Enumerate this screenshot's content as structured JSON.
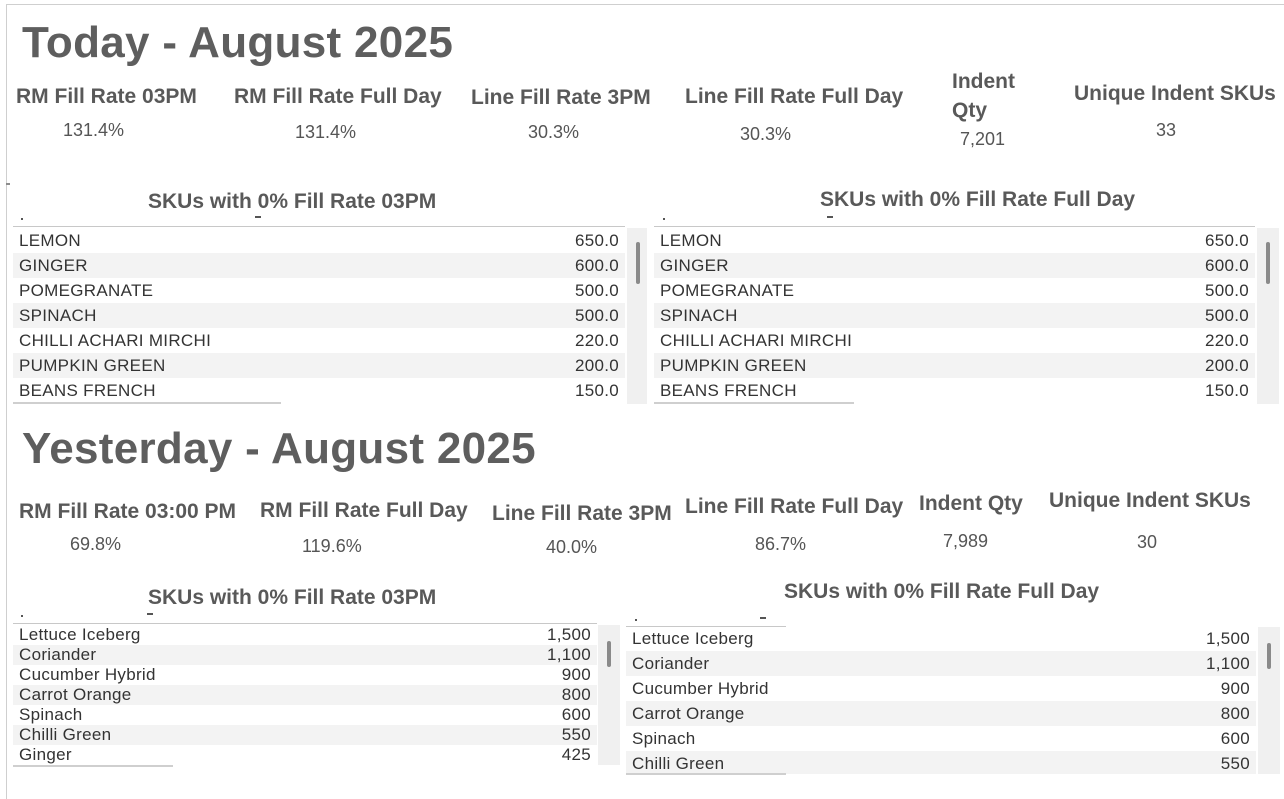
{
  "today": {
    "title": "Today - August 2025",
    "kpis": [
      {
        "label": "RM Fill Rate 03PM",
        "value": "131.4%"
      },
      {
        "label": "RM Fill Rate Full Day",
        "value": "131.4%"
      },
      {
        "label": "Line Fill Rate 3PM",
        "value": "30.3%"
      },
      {
        "label": "Line Fill Rate Full Day",
        "value": "30.3%"
      },
      {
        "label_line1": "Indent",
        "label_line2": "Qty",
        "value": "7,201"
      },
      {
        "label": "Unique Indent SKUs",
        "value": "33"
      }
    ],
    "table_3pm": {
      "title": "SKUs with 0% Fill Rate 03PM",
      "rows": [
        {
          "sku": "LEMON",
          "qty": "650.0"
        },
        {
          "sku": "GINGER",
          "qty": "600.0"
        },
        {
          "sku": "POMEGRANATE",
          "qty": "500.0"
        },
        {
          "sku": "SPINACH",
          "qty": "500.0"
        },
        {
          "sku": "CHILLI ACHARI MIRCHI",
          "qty": "220.0"
        },
        {
          "sku": "PUMPKIN GREEN",
          "qty": "200.0"
        },
        {
          "sku": "BEANS FRENCH",
          "qty": "150.0"
        }
      ]
    },
    "table_full": {
      "title": "SKUs with 0% Fill Rate Full Day",
      "rows": [
        {
          "sku": "LEMON",
          "qty": "650.0"
        },
        {
          "sku": "GINGER",
          "qty": "600.0"
        },
        {
          "sku": "POMEGRANATE",
          "qty": "500.0"
        },
        {
          "sku": "SPINACH",
          "qty": "500.0"
        },
        {
          "sku": "CHILLI ACHARI MIRCHI",
          "qty": "220.0"
        },
        {
          "sku": "PUMPKIN GREEN",
          "qty": "200.0"
        },
        {
          "sku": "BEANS FRENCH",
          "qty": "150.0"
        }
      ]
    }
  },
  "yesterday": {
    "title": "Yesterday - August 2025",
    "kpis": [
      {
        "label": "RM Fill Rate 03:00 PM",
        "value": "69.8%"
      },
      {
        "label": "RM Fill Rate Full Day",
        "value": "119.6%"
      },
      {
        "label": "Line Fill Rate 3PM",
        "value": "40.0%"
      },
      {
        "label": "Line Fill Rate Full Day",
        "value": "86.7%"
      },
      {
        "label": "Indent Qty",
        "value": "7,989"
      },
      {
        "label": "Unique Indent SKUs",
        "value": "30"
      }
    ],
    "table_3pm": {
      "title": "SKUs with 0% Fill Rate 03PM",
      "rows": [
        {
          "sku": "Lettuce Iceberg",
          "qty": "1,500"
        },
        {
          "sku": "Coriander",
          "qty": "1,100"
        },
        {
          "sku": "Cucumber Hybrid",
          "qty": "900"
        },
        {
          "sku": "Carrot Orange",
          "qty": "800"
        },
        {
          "sku": "Spinach",
          "qty": "600"
        },
        {
          "sku": "Chilli Green",
          "qty": "550"
        },
        {
          "sku": "Ginger",
          "qty": "425"
        }
      ]
    },
    "table_full": {
      "title": "SKUs with 0% Fill Rate Full Day",
      "rows": [
        {
          "sku": "Lettuce Iceberg",
          "qty": "1,500"
        },
        {
          "sku": "Coriander",
          "qty": "1,100"
        },
        {
          "sku": "Cucumber Hybrid",
          "qty": "900"
        },
        {
          "sku": "Carrot Orange",
          "qty": "800"
        },
        {
          "sku": "Spinach",
          "qty": "600"
        },
        {
          "sku": "Chilli Green",
          "qty": "550"
        }
      ]
    }
  }
}
